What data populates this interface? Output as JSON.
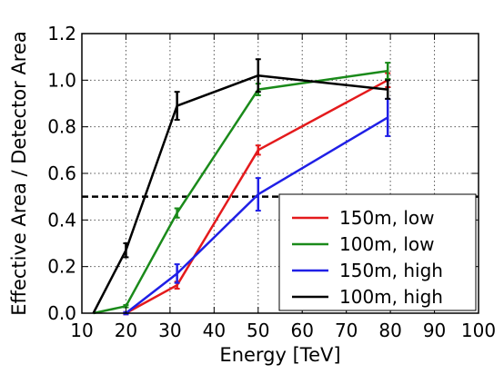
{
  "chart_data": {
    "type": "line",
    "xlabel": "Energy [TeV]",
    "ylabel": "Effective Area / Detector Area",
    "xlim": [
      10,
      100
    ],
    "ylim": [
      0,
      1.2
    ],
    "xticks": [
      "10",
      "20",
      "30",
      "40",
      "50",
      "60",
      "70",
      "80",
      "90",
      "100"
    ],
    "xtick_values": [
      10,
      20,
      30,
      40,
      50,
      60,
      70,
      80,
      90,
      100
    ],
    "yticks": [
      "0.0",
      "0.2",
      "0.4",
      "0.6",
      "0.8",
      "1.0",
      "1.2"
    ],
    "ytick_values": [
      0,
      0.2,
      0.4,
      0.6,
      0.8,
      1.0,
      1.2
    ],
    "grid": true,
    "legend_position": "lower-right",
    "reference_line": {
      "y": 0.5,
      "style": "dashed",
      "color": "#000000"
    },
    "series": [
      {
        "name": "150m, low",
        "color": "#e41a1c",
        "x": [
          20,
          31.6,
          50,
          79.4
        ],
        "y": [
          0.0,
          0.12,
          0.7,
          1.0
        ],
        "yerr": [
          0.005,
          0.015,
          0.02,
          0.03
        ]
      },
      {
        "name": "100m, low",
        "color": "#1a8a1a",
        "x": [
          12.6,
          20,
          31.6,
          50,
          79.4
        ],
        "y": [
          0.0,
          0.03,
          0.43,
          0.96,
          1.04
        ],
        "yerr": [
          0.0,
          0.005,
          0.02,
          0.025,
          0.035
        ]
      },
      {
        "name": "150m, high",
        "color": "#1f1fe6",
        "x": [
          20,
          31.6,
          50,
          79.4
        ],
        "y": [
          0.0,
          0.17,
          0.51,
          0.84
        ],
        "yerr": [
          0.005,
          0.04,
          0.07,
          0.08
        ]
      },
      {
        "name": "100m, high",
        "color": "#000000",
        "x": [
          12.6,
          20,
          31.6,
          50,
          79.4
        ],
        "y": [
          0.0,
          0.27,
          0.89,
          1.02,
          0.96
        ],
        "yerr": [
          0.0,
          0.03,
          0.06,
          0.07,
          0.04
        ]
      }
    ]
  }
}
